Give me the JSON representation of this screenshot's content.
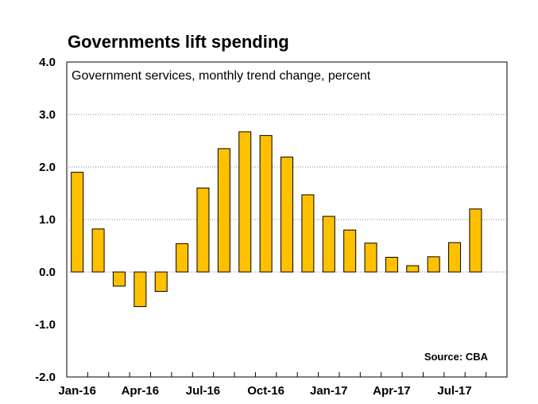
{
  "chart_data": {
    "type": "bar",
    "title": "Governments lift spending",
    "subtitle": "Government services, monthly trend change, percent",
    "source": "Source: CBA",
    "categories": [
      "Jan-16",
      "Feb-16",
      "Mar-16",
      "Apr-16",
      "May-16",
      "Jun-16",
      "Jul-16",
      "Aug-16",
      "Sep-16",
      "Oct-16",
      "Nov-16",
      "Dec-16",
      "Jan-17",
      "Feb-17",
      "Mar-17",
      "Apr-17",
      "May-17",
      "Jun-17",
      "Jul-17",
      "Aug-17"
    ],
    "values": [
      1.9,
      0.82,
      -0.27,
      -0.66,
      -0.37,
      0.54,
      1.6,
      2.35,
      2.67,
      2.6,
      2.19,
      1.47,
      1.06,
      0.8,
      0.55,
      0.28,
      0.12,
      0.29,
      0.56,
      1.2
    ],
    "x_tick_labels": [
      "Jan-16",
      "Apr-16",
      "Jul-16",
      "Oct-16",
      "Jan-17",
      "Apr-17",
      "Jul-17"
    ],
    "y_tick_labels": [
      "4.0",
      "3.0",
      "2.0",
      "1.0",
      "0.0",
      "-1.0",
      "-2.0"
    ],
    "ylim": [
      -2.0,
      4.0
    ],
    "grid": "horizontal dotted at 3.0, 2.0, 1.0, 0.0",
    "bar_color": "#FFC000",
    "bar_outline": "#000000",
    "gridline_color": "#808080"
  }
}
